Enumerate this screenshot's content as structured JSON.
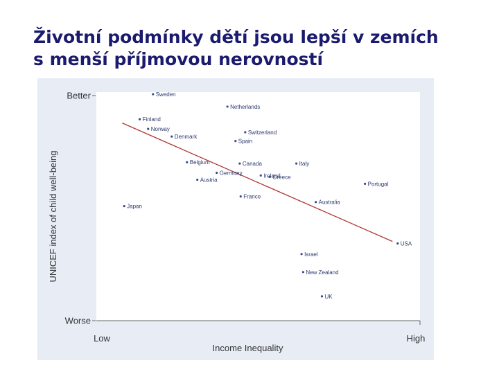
{
  "title": {
    "line1": "Životní podmínky dětí jsou lepší v zemích",
    "line2": "s menší příjmovou nerovností"
  },
  "chart_data": {
    "type": "scatter",
    "xlabel": "Income Inequality",
    "ylabel": "UNICEF index of child well-being",
    "xlim": [
      0,
      100
    ],
    "ylim": [
      0,
      100
    ],
    "x_ticks": [
      {
        "value": 0,
        "label": "Low"
      },
      {
        "value": 100,
        "label": "High"
      }
    ],
    "y_ticks": [
      {
        "value": 100,
        "label": "Better"
      },
      {
        "value": 0,
        "label": "Worse"
      }
    ],
    "colors": {
      "background": "#e7ecf5",
      "point": "#3a4a8a",
      "label": "#2b3a6e",
      "trend": "#b03535"
    },
    "points": [
      {
        "name": "Sweden",
        "x": 17.5,
        "y": 100.6
      },
      {
        "name": "Netherlands",
        "x": 40.5,
        "y": 95.1
      },
      {
        "name": "Finland",
        "x": 13.4,
        "y": 89.5
      },
      {
        "name": "Norway",
        "x": 16.0,
        "y": 85.2
      },
      {
        "name": "Denmark",
        "x": 23.3,
        "y": 81.8
      },
      {
        "name": "Switzerland",
        "x": 46.0,
        "y": 83.7
      },
      {
        "name": "Spain",
        "x": 43.0,
        "y": 79.8
      },
      {
        "name": "Belgium",
        "x": 28.0,
        "y": 70.4
      },
      {
        "name": "Germany",
        "x": 37.2,
        "y": 65.7
      },
      {
        "name": "Austria",
        "x": 31.2,
        "y": 62.6
      },
      {
        "name": "Canada",
        "x": 44.3,
        "y": 69.8
      },
      {
        "name": "Ireland",
        "x": 50.8,
        "y": 64.5
      },
      {
        "name": "Italy",
        "x": 61.8,
        "y": 69.8
      },
      {
        "name": "Greece",
        "x": 53.6,
        "y": 63.9
      },
      {
        "name": "Portugal",
        "x": 83.0,
        "y": 60.8
      },
      {
        "name": "France",
        "x": 44.6,
        "y": 55.2
      },
      {
        "name": "Australia",
        "x": 67.8,
        "y": 52.7
      },
      {
        "name": "Japan",
        "x": 8.6,
        "y": 50.9
      },
      {
        "name": "USA",
        "x": 93.1,
        "y": 34.3
      },
      {
        "name": "Israel",
        "x": 63.4,
        "y": 29.6
      },
      {
        "name": "New Zealand",
        "x": 63.9,
        "y": 21.6
      },
      {
        "name": "UK",
        "x": 69.7,
        "y": 10.8
      }
    ],
    "trendline": {
      "x": [
        8.0,
        91.5
      ],
      "y": [
        87.8,
        35.2
      ]
    }
  }
}
